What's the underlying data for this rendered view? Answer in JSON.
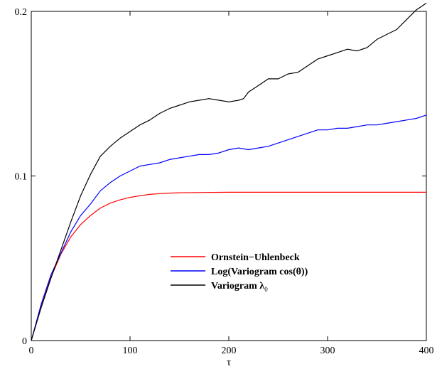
{
  "chart_data": {
    "type": "line",
    "xlabel": "τ",
    "ylabel": "",
    "xlim": [
      0,
      400
    ],
    "ylim": [
      0,
      0.2
    ],
    "x_ticks": [
      0,
      100,
      200,
      300,
      400
    ],
    "x_tick_labels": [
      "0",
      "100",
      "200",
      "300",
      "400"
    ],
    "y_ticks": [
      0,
      0.1,
      0.2
    ],
    "y_tick_labels": [
      "0",
      "0.1",
      "0.2"
    ],
    "grid": false,
    "legend_position": "lower-center",
    "series": [
      {
        "name": "Ornstein−Uhlenbeck",
        "label_main": "Ornstein−Uhlenbeck",
        "label_sub": "",
        "color": "#ff0000",
        "x": [
          0,
          10,
          20,
          30,
          40,
          50,
          60,
          70,
          80,
          90,
          100,
          110,
          120,
          130,
          140,
          150,
          175,
          200,
          250,
          300,
          350,
          400
        ],
        "y": [
          0,
          0.0215,
          0.0385,
          0.0525,
          0.063,
          0.0705,
          0.076,
          0.0805,
          0.0835,
          0.0855,
          0.087,
          0.088,
          0.0888,
          0.0893,
          0.0896,
          0.0898,
          0.09,
          0.0901,
          0.0901,
          0.0901,
          0.0901,
          0.0901
        ]
      },
      {
        "name": "Log(Variogram cos(θ))",
        "label_main": "Log(Variogram cos(θ))",
        "label_sub": "",
        "color": "#0000ff",
        "x": [
          0,
          10,
          20,
          30,
          40,
          50,
          60,
          70,
          80,
          90,
          100,
          110,
          120,
          130,
          140,
          150,
          160,
          170,
          180,
          190,
          200,
          210,
          220,
          230,
          240,
          250,
          260,
          270,
          280,
          290,
          300,
          310,
          320,
          330,
          340,
          350,
          360,
          370,
          380,
          390,
          400
        ],
        "y": [
          0,
          0.022,
          0.04,
          0.053,
          0.066,
          0.076,
          0.083,
          0.091,
          0.096,
          0.1,
          0.103,
          0.106,
          0.107,
          0.108,
          0.11,
          0.111,
          0.112,
          0.113,
          0.113,
          0.114,
          0.116,
          0.117,
          0.116,
          0.117,
          0.118,
          0.12,
          0.122,
          0.124,
          0.126,
          0.128,
          0.128,
          0.129,
          0.129,
          0.13,
          0.131,
          0.131,
          0.132,
          0.133,
          0.134,
          0.135,
          0.137
        ]
      },
      {
        "name": "Variogram λ0",
        "label_main": "Variogram λ",
        "label_sub": "0",
        "color": "#000000",
        "x": [
          0,
          10,
          20,
          30,
          40,
          50,
          60,
          70,
          80,
          90,
          100,
          110,
          120,
          130,
          140,
          150,
          160,
          170,
          180,
          190,
          200,
          210,
          215,
          220,
          230,
          240,
          250,
          260,
          270,
          280,
          290,
          300,
          310,
          320,
          330,
          340,
          350,
          360,
          370,
          380,
          390,
          395,
          400
        ],
        "y": [
          0,
          0.02,
          0.038,
          0.055,
          0.072,
          0.088,
          0.101,
          0.112,
          0.118,
          0.123,
          0.127,
          0.131,
          0.134,
          0.138,
          0.141,
          0.143,
          0.145,
          0.146,
          0.147,
          0.146,
          0.145,
          0.146,
          0.147,
          0.151,
          0.155,
          0.159,
          0.159,
          0.162,
          0.163,
          0.167,
          0.171,
          0.173,
          0.175,
          0.177,
          0.176,
          0.178,
          0.183,
          0.186,
          0.189,
          0.195,
          0.201,
          0.203,
          0.205
        ]
      }
    ]
  }
}
